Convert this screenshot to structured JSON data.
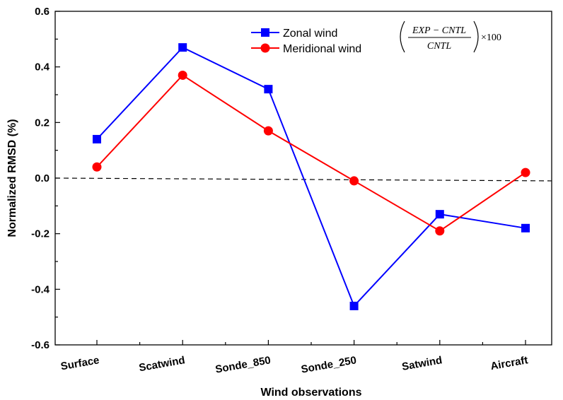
{
  "chart_data": {
    "type": "line",
    "xlabel": "Wind observations",
    "ylabel": "Normalized RMSD (%)",
    "categories": [
      "Surface",
      "Scatwind",
      "Sonde_850",
      "Sonde_250",
      "Satwind",
      "Aircraft"
    ],
    "ylim": [
      -0.6,
      0.6
    ],
    "yticks": [
      "-0.6",
      "-0.4",
      "-0.2",
      "0.0",
      "0.2",
      "0.4",
      "0.6"
    ],
    "grid": false,
    "legend_position": "top",
    "series": [
      {
        "name": "Zonal wind",
        "color": "#0000ff",
        "marker": "square",
        "values": [
          0.14,
          0.47,
          0.32,
          -0.46,
          -0.13,
          -0.18
        ]
      },
      {
        "name": "Meridional wind",
        "color": "#ff0000",
        "marker": "circle",
        "values": [
          0.04,
          0.37,
          0.17,
          -0.01,
          -0.19,
          0.02
        ]
      }
    ],
    "reference_line": {
      "style": "dashed",
      "y_start": 0.0,
      "y_end": -0.01
    },
    "formula": {
      "numerator": "EXP − CNTL",
      "denominator": "CNTL",
      "multiplier": "×100"
    }
  }
}
